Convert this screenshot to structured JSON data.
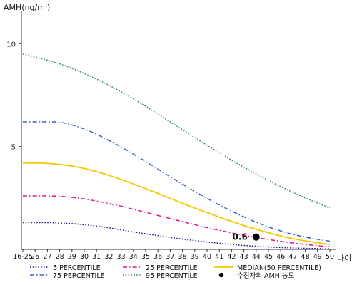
{
  "chart_data": {
    "type": "line",
    "ylabel": "AMH(ng/ml)",
    "xlabel": "나이",
    "ylim": [
      0,
      11.5
    ],
    "yticks": [
      5,
      10
    ],
    "grid": false,
    "legend_position": "bottom",
    "categories": [
      "16-25",
      "26",
      "27",
      "28",
      "29",
      "30",
      "31",
      "32",
      "33",
      "34",
      "35",
      "36",
      "37",
      "38",
      "39",
      "40",
      "41",
      "42",
      "43",
      "44",
      "45",
      "46",
      "47",
      "48",
      "49",
      "50"
    ],
    "series": [
      {
        "name": "5 PERCENTILE",
        "color": "#1a1a8c",
        "dash": "dotted",
        "values": [
          1.3,
          1.3,
          1.3,
          1.28,
          1.25,
          1.2,
          1.13,
          1.05,
          0.95,
          0.85,
          0.76,
          0.67,
          0.58,
          0.5,
          0.43,
          0.36,
          0.3,
          0.24,
          0.19,
          0.15,
          0.12,
          0.09,
          0.07,
          0.05,
          0.04,
          0.03
        ]
      },
      {
        "name": "25 PERCENTILE",
        "color": "#e0168a",
        "dash": "dashdot",
        "values": [
          2.6,
          2.6,
          2.6,
          2.58,
          2.53,
          2.45,
          2.35,
          2.23,
          2.1,
          1.95,
          1.8,
          1.65,
          1.5,
          1.35,
          1.2,
          1.06,
          0.93,
          0.8,
          0.69,
          0.58,
          0.48,
          0.39,
          0.31,
          0.24,
          0.18,
          0.13
        ]
      },
      {
        "name": "75 PERCENTILE",
        "color": "#3a5ec9",
        "dash": "dashdot",
        "values": [
          6.2,
          6.2,
          6.2,
          6.18,
          6.05,
          5.85,
          5.6,
          5.3,
          4.98,
          4.63,
          4.27,
          3.9,
          3.53,
          3.17,
          2.82,
          2.48,
          2.16,
          1.86,
          1.58,
          1.32,
          1.09,
          0.9,
          0.73,
          0.6,
          0.49,
          0.4
        ]
      },
      {
        "name": "95 PERCENTILE",
        "color": "#2e8b57",
        "dash": "dotted",
        "values": [
          9.5,
          9.35,
          9.2,
          9.02,
          8.8,
          8.55,
          8.28,
          7.98,
          7.66,
          7.32,
          6.96,
          6.58,
          6.2,
          5.82,
          5.44,
          5.06,
          4.7,
          4.34,
          4.0,
          3.67,
          3.35,
          3.05,
          2.77,
          2.5,
          2.25,
          2.02
        ]
      },
      {
        "name": "MEDIAN(50 PERCENTILE)",
        "color": "#f5c800",
        "dash": "solid",
        "values": [
          4.2,
          4.2,
          4.18,
          4.13,
          4.05,
          3.93,
          3.78,
          3.6,
          3.4,
          3.18,
          2.95,
          2.72,
          2.48,
          2.24,
          2.01,
          1.79,
          1.57,
          1.36,
          1.16,
          0.98,
          0.81,
          0.65,
          0.52,
          0.41,
          0.32,
          0.24
        ]
      }
    ],
    "marker": {
      "name": "수진자의 AMH 농도",
      "x": "44",
      "y": 0.6,
      "label": "0.6",
      "color": "#000000"
    }
  }
}
